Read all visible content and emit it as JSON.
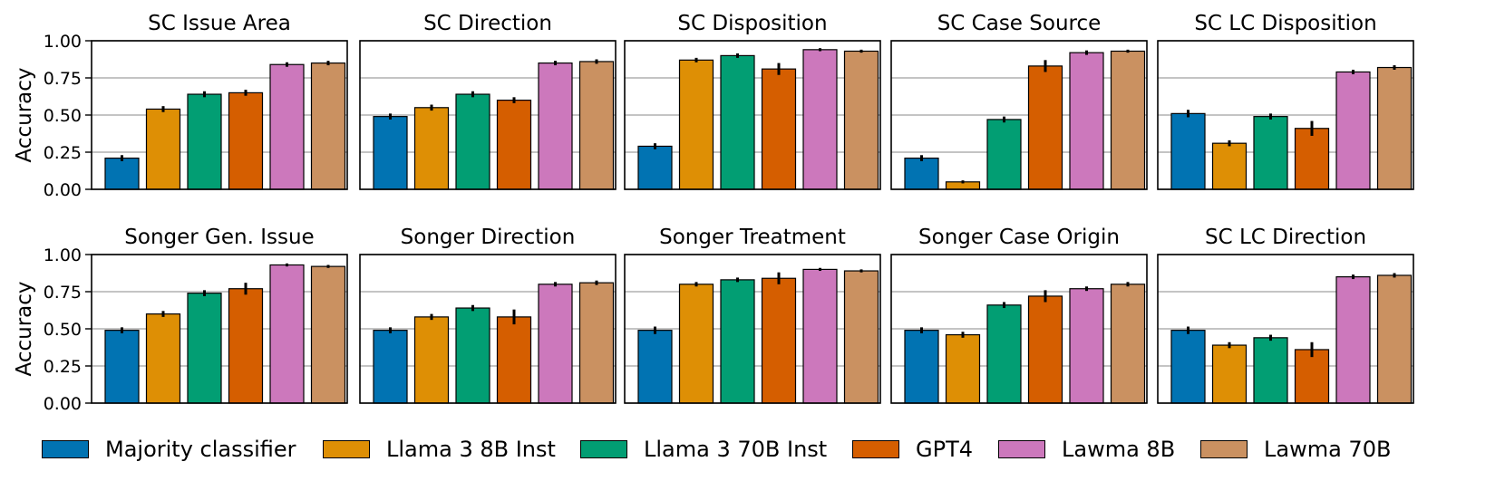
{
  "chart_data": {
    "type": "bar",
    "ylabel": "Accuracy",
    "ylim": [
      0,
      1
    ],
    "yticks": [
      "0.00",
      "0.25",
      "0.50",
      "0.75",
      "1.00"
    ],
    "grid": "horizontal",
    "legend_position": "bottom",
    "series": [
      {
        "name": "Majority classifier",
        "color": "#0173b2"
      },
      {
        "name": "Llama 3 8B Inst",
        "color": "#de8f05"
      },
      {
        "name": "Llama 3 70B Inst",
        "color": "#029e73"
      },
      {
        "name": "GPT4",
        "color": "#d55e00"
      },
      {
        "name": "Lawma 8B",
        "color": "#cc78bc"
      },
      {
        "name": "Lawma 70B",
        "color": "#ca9161"
      }
    ],
    "panels": [
      {
        "title": "SC Issue Area",
        "values": [
          0.21,
          0.54,
          0.64,
          0.65,
          0.84,
          0.85
        ],
        "errors": [
          0.02,
          0.02,
          0.02,
          0.02,
          0.015,
          0.015
        ]
      },
      {
        "title": "SC Direction",
        "values": [
          0.49,
          0.55,
          0.64,
          0.6,
          0.85,
          0.86
        ],
        "errors": [
          0.02,
          0.02,
          0.02,
          0.02,
          0.015,
          0.015
        ]
      },
      {
        "title": "SC Disposition",
        "values": [
          0.29,
          0.87,
          0.9,
          0.81,
          0.94,
          0.93
        ],
        "errors": [
          0.02,
          0.015,
          0.015,
          0.04,
          0.01,
          0.01
        ]
      },
      {
        "title": "SC Case Source",
        "values": [
          0.21,
          0.05,
          0.47,
          0.83,
          0.92,
          0.93
        ],
        "errors": [
          0.02,
          0.01,
          0.02,
          0.04,
          0.015,
          0.01
        ]
      },
      {
        "title": "SC LC Disposition",
        "values": [
          0.51,
          0.31,
          0.49,
          0.41,
          0.79,
          0.82
        ],
        "errors": [
          0.025,
          0.02,
          0.02,
          0.05,
          0.015,
          0.015
        ]
      },
      {
        "title": "Songer Gen. Issue",
        "values": [
          0.49,
          0.6,
          0.74,
          0.77,
          0.93,
          0.92
        ],
        "errors": [
          0.02,
          0.02,
          0.02,
          0.04,
          0.01,
          0.01
        ]
      },
      {
        "title": "Songer Direction",
        "values": [
          0.49,
          0.58,
          0.64,
          0.58,
          0.8,
          0.81
        ],
        "errors": [
          0.02,
          0.02,
          0.02,
          0.05,
          0.015,
          0.015
        ]
      },
      {
        "title": "Songer Treatment",
        "values": [
          0.49,
          0.8,
          0.83,
          0.84,
          0.9,
          0.89
        ],
        "errors": [
          0.025,
          0.015,
          0.015,
          0.04,
          0.01,
          0.01
        ]
      },
      {
        "title": "Songer Case Origin",
        "values": [
          0.49,
          0.46,
          0.66,
          0.72,
          0.77,
          0.8
        ],
        "errors": [
          0.02,
          0.02,
          0.02,
          0.04,
          0.015,
          0.015
        ]
      },
      {
        "title": "SC LC Direction",
        "values": [
          0.49,
          0.39,
          0.44,
          0.36,
          0.85,
          0.86
        ],
        "errors": [
          0.025,
          0.02,
          0.02,
          0.05,
          0.015,
          0.015
        ]
      }
    ]
  }
}
